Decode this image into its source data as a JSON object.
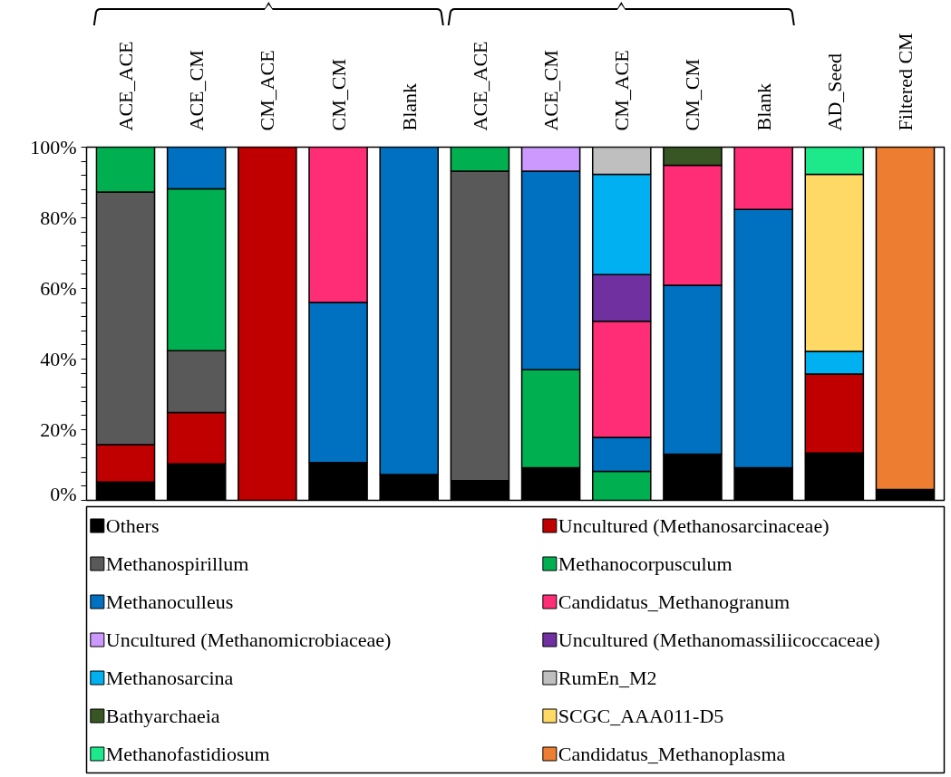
{
  "chart_data": {
    "type": "bar",
    "stacked": true,
    "categories": [
      "ACE_ACE",
      "ACE_CM",
      "CM_ACE",
      "CM_CM",
      "Blank",
      "ACE_ACE",
      "ACE_CM",
      "CM_ACE",
      "CM_CM",
      "Blank",
      "AD_Seed",
      "Filtered CM"
    ],
    "ylim": [
      0,
      100
    ],
    "yticks": [
      {
        "value": 0,
        "label": "0%"
      },
      {
        "value": 20,
        "label": "20%"
      },
      {
        "value": 40,
        "label": "40%"
      },
      {
        "value": 60,
        "label": "60%"
      },
      {
        "value": 80,
        "label": "80%"
      },
      {
        "value": 100,
        "label": "100%"
      }
    ],
    "grid": false,
    "legend": "bottom",
    "series": [
      {
        "name": "Others",
        "color": "#000000",
        "values": [
          5.2,
          10.3,
          0,
          10.7,
          7.3,
          5.6,
          9.2,
          null,
          13.1,
          9.2,
          13.4,
          3.1
        ]
      },
      {
        "name": "Uncultured (Methanosarcinaceae)",
        "color": "#c00000",
        "values": [
          10.6,
          14.6,
          100,
          0,
          0,
          0,
          0,
          0,
          0,
          0,
          22.4,
          0
        ]
      },
      {
        "name": "Methanospirillum",
        "color": "#595959",
        "values": [
          71.5,
          17.5,
          0,
          0,
          0,
          87.6,
          0,
          0,
          0,
          0,
          0,
          0
        ]
      },
      {
        "name": "Methanocorpusculum",
        "color": "#00b050",
        "values": [
          12.7,
          45.8,
          0,
          0,
          0,
          6.8,
          27.8,
          8.2,
          0,
          0,
          0,
          0
        ]
      },
      {
        "name": "Methanoculleus",
        "color": "#0070c0",
        "values": [
          0,
          11.8,
          0,
          45.3,
          92.7,
          0,
          56.2,
          9.6,
          47.8,
          73.2,
          0,
          0
        ]
      },
      {
        "name": "Candidatus_Methanogranum",
        "color": "#ff2d75",
        "values": [
          0,
          0,
          0,
          44.0,
          0,
          0,
          0,
          32.9,
          34.0,
          17.6,
          0,
          0
        ]
      },
      {
        "name": "Uncultured (Methanomicrobiaceae)",
        "color": "#cc99ff",
        "values": [
          0,
          0,
          0,
          0,
          0,
          0,
          6.8,
          0,
          0,
          0,
          0,
          0
        ]
      },
      {
        "name": "Uncultured (Methanomassiliicoccaceae)",
        "color": "#7030a0",
        "values": [
          0,
          0,
          0,
          0,
          0,
          0,
          0,
          13.2,
          0,
          0,
          0,
          0
        ]
      },
      {
        "name": "Methanosarcina",
        "color": "#00b0f0",
        "values": [
          0,
          0,
          0,
          0,
          0,
          0,
          0,
          28.4,
          0,
          0,
          6.4,
          0
        ]
      },
      {
        "name": "RumEn_M2",
        "color": "#bfbfbf",
        "values": [
          0,
          0,
          0,
          0,
          0,
          0,
          0,
          7.7,
          0,
          0,
          0,
          0
        ]
      },
      {
        "name": "Bathyarchaeia",
        "color": "#375623",
        "values": [
          0,
          0,
          0,
          0,
          0,
          0,
          0,
          0,
          5.1,
          0,
          0,
          0
        ]
      },
      {
        "name": "SCGC_AAA011-D5",
        "color": "#ffd966",
        "values": [
          0,
          0,
          0,
          0,
          0,
          0,
          0,
          0,
          0,
          0,
          50.1,
          0
        ]
      },
      {
        "name": "Methanofastidiosum",
        "color": "#1de98b",
        "values": [
          0,
          0,
          0,
          0,
          0,
          0,
          0,
          0,
          0,
          0,
          7.7,
          0
        ]
      },
      {
        "name": "Candidatus_Methanoplasma",
        "color": "#ed7d31",
        "values": [
          0,
          0,
          0,
          0,
          0,
          0,
          0,
          0,
          0,
          0,
          0,
          96.9
        ]
      }
    ]
  }
}
